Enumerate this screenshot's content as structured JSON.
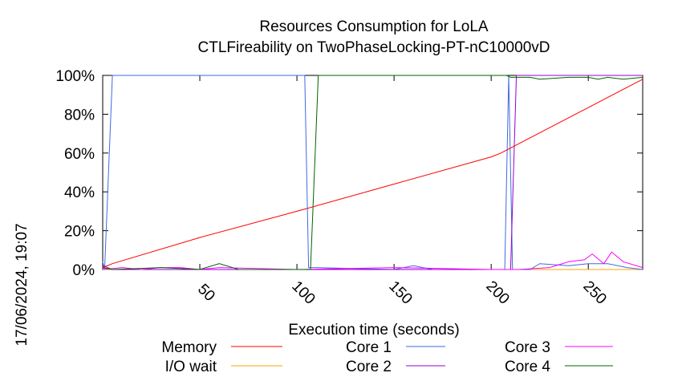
{
  "chart_data": {
    "type": "line",
    "title": "Resources Consumption for LoLA",
    "subtitle": "CTLFireability on TwoPhaseLocking-PT-nC10000vD",
    "xlabel": "Execution time (seconds)",
    "ylabel": "",
    "timestamp": "17/06/2024, 19:07",
    "xlim": [
      0,
      278
    ],
    "ylim": [
      0,
      100
    ],
    "x_ticks": [
      50,
      100,
      150,
      200,
      250
    ],
    "y_ticks": [
      0,
      20,
      40,
      60,
      80,
      100
    ],
    "y_tick_labels": [
      "0%",
      "20%",
      "40%",
      "60%",
      "80%",
      "100%"
    ],
    "grid": false,
    "legend_position": "bottom",
    "series": [
      {
        "name": "Memory",
        "color": "#ff0000",
        "points": [
          [
            0,
            1
          ],
          [
            5,
            3
          ],
          [
            50,
            16.5
          ],
          [
            100,
            30
          ],
          [
            150,
            44
          ],
          [
            200,
            58
          ],
          [
            205,
            60
          ],
          [
            278,
            98
          ]
        ]
      },
      {
        "name": "I/O wait",
        "color": "#ffa500",
        "points": [
          [
            0,
            0
          ],
          [
            278,
            0
          ]
        ]
      },
      {
        "name": "Core 1",
        "color": "#4169e1",
        "points": [
          [
            0,
            4
          ],
          [
            1,
            0
          ],
          [
            5,
            100
          ],
          [
            50,
            100
          ],
          [
            100,
            100
          ],
          [
            104,
            100
          ],
          [
            106,
            1
          ],
          [
            110,
            1
          ],
          [
            150,
            0
          ],
          [
            160,
            2
          ],
          [
            170,
            0
          ],
          [
            200,
            0
          ],
          [
            207,
            0
          ],
          [
            209,
            100
          ],
          [
            211,
            0
          ],
          [
            220,
            0
          ],
          [
            225,
            3
          ],
          [
            240,
            2
          ],
          [
            250,
            3
          ],
          [
            260,
            3
          ],
          [
            270,
            1
          ],
          [
            278,
            0
          ]
        ]
      },
      {
        "name": "Core 2",
        "color": "#9400d3",
        "points": [
          [
            0,
            2
          ],
          [
            5,
            0
          ],
          [
            100,
            0
          ],
          [
            200,
            0
          ],
          [
            210,
            0
          ],
          [
            213,
            100
          ],
          [
            278,
            100
          ]
        ]
      },
      {
        "name": "Core 3",
        "color": "#ff00ff",
        "points": [
          [
            0,
            0
          ],
          [
            10,
            1
          ],
          [
            20,
            0
          ],
          [
            30,
            1
          ],
          [
            40,
            1
          ],
          [
            50,
            0
          ],
          [
            60,
            1
          ],
          [
            100,
            0
          ],
          [
            150,
            1
          ],
          [
            200,
            0
          ],
          [
            214,
            0
          ],
          [
            230,
            1
          ],
          [
            240,
            4
          ],
          [
            248,
            5
          ],
          [
            252,
            8
          ],
          [
            258,
            3
          ],
          [
            262,
            9
          ],
          [
            268,
            4
          ],
          [
            278,
            1
          ]
        ]
      },
      {
        "name": "Core 4",
        "color": "#006400",
        "points": [
          [
            0,
            1
          ],
          [
            5,
            0
          ],
          [
            30,
            1
          ],
          [
            50,
            0
          ],
          [
            60,
            3
          ],
          [
            70,
            0
          ],
          [
            100,
            0
          ],
          [
            107,
            0
          ],
          [
            111,
            100
          ],
          [
            200,
            100
          ],
          [
            208,
            100
          ],
          [
            210,
            99
          ],
          [
            220,
            99
          ],
          [
            225,
            98
          ],
          [
            240,
            99
          ],
          [
            250,
            99
          ],
          [
            255,
            98
          ],
          [
            260,
            99
          ],
          [
            268,
            98
          ],
          [
            278,
            99
          ]
        ]
      }
    ]
  }
}
